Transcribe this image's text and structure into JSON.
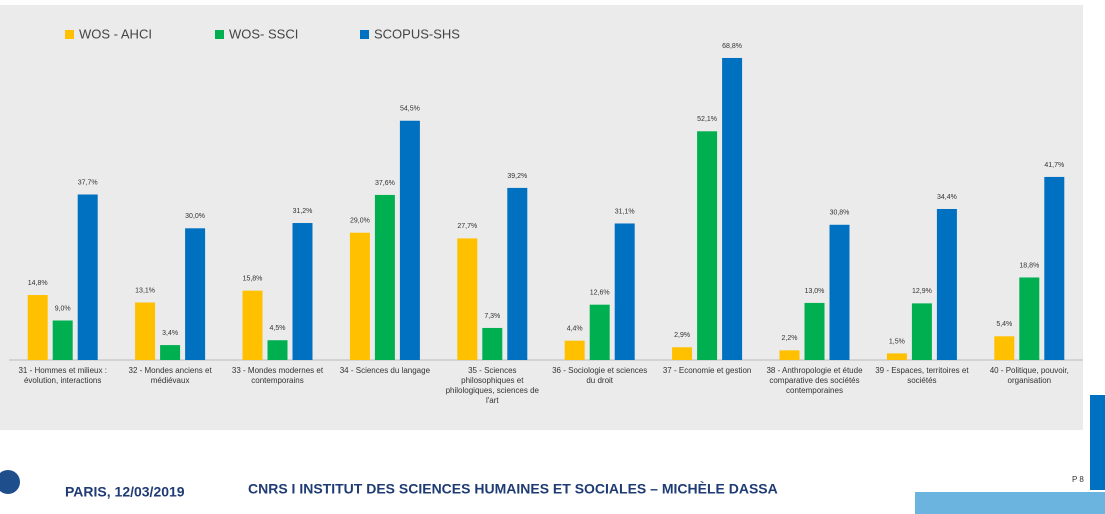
{
  "chart_data": {
    "type": "bar",
    "categories": [
      "31 - Hommes et milieux : évolution, interactions",
      "32 - Mondes anciens et médiévaux",
      "33 - Mondes modernes et contemporains",
      "34 - Sciences du langage",
      "35 - Sciences philosophiques et philologiques, sciences de l'art",
      "36 - Sociologie et sciences du droit",
      "37 - Economie et gestion",
      "38 - Anthropologie et étude comparative des sociétés contemporaines",
      "39 - Espaces, territoires et sociétés",
      "40 - Politique, pouvoir, organisation"
    ],
    "series": [
      {
        "name": "WOS - AHCI",
        "color": "#ffc000",
        "values": [
          14.8,
          13.1,
          15.8,
          29.0,
          27.7,
          4.4,
          2.9,
          2.2,
          1.5,
          5.4
        ],
        "value_labels": [
          "14,8%",
          "13,1%",
          "15,8%",
          "29,0%",
          "27,7%",
          "4,4%",
          "2,9%",
          "2,2%",
          "1,5%",
          "5,4%"
        ]
      },
      {
        "name": "WOS- SSCI",
        "color": "#00b050",
        "values": [
          9.0,
          3.4,
          4.5,
          37.6,
          7.3,
          12.6,
          52.1,
          13.0,
          12.9,
          18.8
        ],
        "value_labels": [
          "9,0%",
          "3,4%",
          "4,5%",
          "37,6%",
          "7,3%",
          "12,6%",
          "52,1%",
          "13,0%",
          "12,9%",
          "18,8%"
        ]
      },
      {
        "name": "SCOPUS-SHS",
        "color": "#0070c0",
        "values": [
          37.7,
          30.0,
          31.2,
          54.5,
          39.2,
          31.1,
          68.8,
          30.8,
          34.4,
          41.7
        ],
        "value_labels": [
          "37,7%",
          "30,0%",
          "31,2%",
          "54,5%",
          "39,2%",
          "31,1%",
          "68,8%",
          "30,8%",
          "34,4%",
          "41,7%"
        ]
      }
    ],
    "legend": "top-left"
  },
  "footer": {
    "place_date": "PARIS, 12/03/2019",
    "text": "CNRS I INSTITUT DES SCIENCES HUMAINES ET SOCIALES – MICHÈLE DASSA",
    "page": "P 8"
  }
}
